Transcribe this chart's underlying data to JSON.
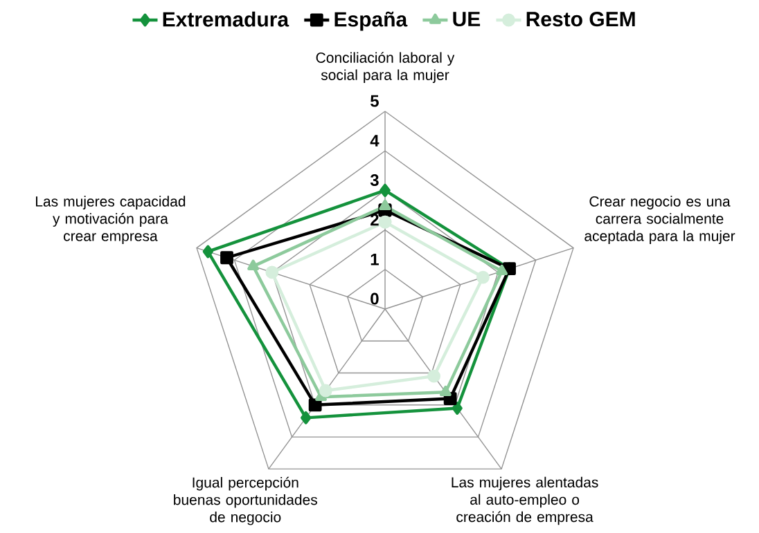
{
  "chart_data": {
    "type": "radar",
    "categories": [
      "Conciliación laboral y social para la mujer",
      "Crear negocio es una carrera socialmente aceptada para la mujer",
      "Las mujeres alentadas al auto-empleo o creación de empresa",
      "Igual percepción buenas oportunidades de negocio",
      "Las mujeres capacidad y motivación para crear empresa"
    ],
    "series": [
      {
        "name": "Extremadura",
        "color": "#14923c",
        "marker": "diamond",
        "values": [
          3.0,
          3.3,
          3.1,
          3.4,
          4.7
        ]
      },
      {
        "name": "España",
        "color": "#000000",
        "marker": "square",
        "values": [
          2.5,
          3.3,
          2.8,
          3.0,
          4.2
        ]
      },
      {
        "name": "UE",
        "color": "#8dca9c",
        "marker": "triangle",
        "values": [
          2.6,
          3.1,
          2.6,
          2.75,
          3.5
        ]
      },
      {
        "name": "Resto GEM",
        "color": "#d5eedc",
        "marker": "circle",
        "values": [
          2.2,
          2.6,
          2.1,
          2.55,
          3.0
        ]
      }
    ],
    "ylim": [
      0,
      5
    ],
    "yticks": [
      0,
      1,
      2,
      3,
      4,
      5
    ],
    "grid": true,
    "legend": "top"
  }
}
